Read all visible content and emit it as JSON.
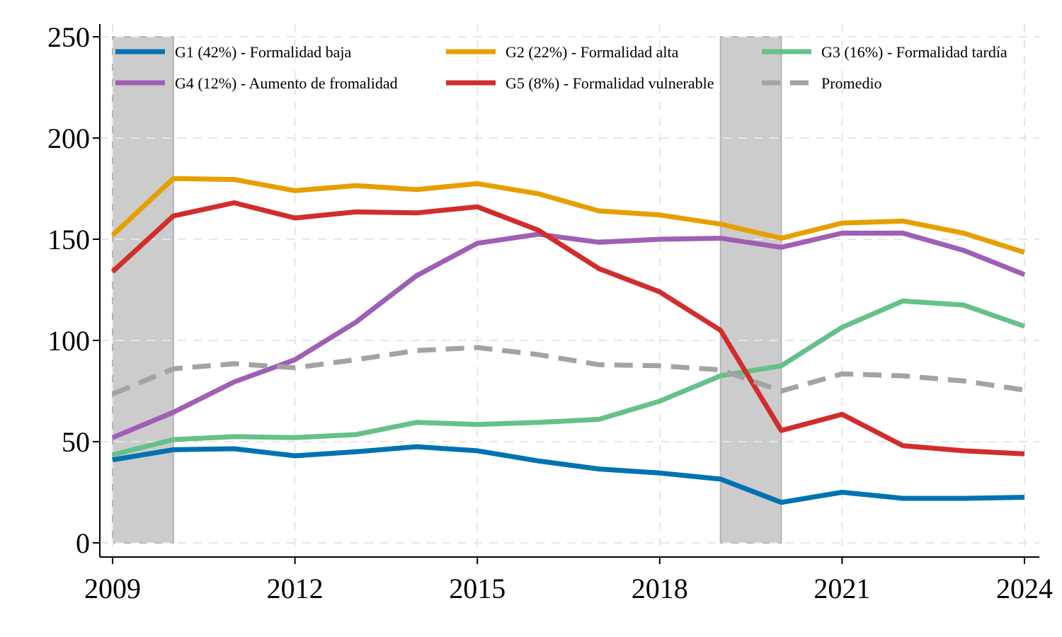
{
  "chart_data": {
    "type": "line",
    "title": "",
    "xlabel": "",
    "ylabel": "",
    "xlim": [
      2009,
      2024
    ],
    "ylim": [
      0,
      250
    ],
    "xticks": [
      2009,
      2012,
      2015,
      2018,
      2021,
      2024
    ],
    "yticks": [
      0,
      50,
      100,
      150,
      200,
      250
    ],
    "grid": true,
    "legend_position": "top",
    "shaded_periods": [
      [
        2009,
        2010
      ],
      [
        2019,
        2020
      ]
    ],
    "shade_color": "#cccccc",
    "x": [
      2009,
      2010,
      2011,
      2012,
      2013,
      2014,
      2015,
      2016,
      2017,
      2018,
      2019,
      2020,
      2021,
      2022,
      2023,
      2024
    ],
    "series": [
      {
        "name": "G1 (42%) - Formalidad baja",
        "color": "#0072b2",
        "dash": false,
        "values": [
          41,
          46,
          46.5,
          43,
          45,
          47.5,
          45.5,
          40.5,
          36.5,
          34.5,
          31.5,
          20,
          25,
          22,
          22,
          22.5
        ]
      },
      {
        "name": "G2 (22%) - Formalidad alta",
        "color": "#e69f00",
        "dash": false,
        "values": [
          152,
          180,
          179.5,
          174,
          176.5,
          174.5,
          177.5,
          172.5,
          164,
          162,
          157.5,
          150.5,
          158,
          159,
          153,
          143.5
        ]
      },
      {
        "name": "G3 (16%) - Formalidad tardía",
        "color": "#66c08a",
        "dash": false,
        "values": [
          43.5,
          51,
          52.5,
          52,
          53.5,
          59.5,
          58.5,
          59.5,
          61,
          70,
          82.5,
          87.5,
          106.5,
          119.5,
          117.5,
          107
        ]
      },
      {
        "name": "G4 (12%) - Aumento de fromalidad",
        "color": "#9e5fb4",
        "dash": false,
        "values": [
          52,
          64.5,
          79.5,
          90.5,
          109,
          132,
          148,
          152.5,
          148.5,
          150,
          150.5,
          146,
          153,
          153,
          144.5,
          132.5
        ]
      },
      {
        "name": "G5 (8%) - Formalidad vulnerable",
        "color": "#d12d2d",
        "dash": false,
        "values": [
          134,
          161.5,
          168,
          160.5,
          163.5,
          163,
          166,
          154.5,
          135.5,
          124,
          105,
          55.5,
          63.5,
          48,
          45.5,
          44
        ]
      },
      {
        "name": "Promedio",
        "color": "#a3a3a3",
        "dash": true,
        "values": [
          73.5,
          86,
          88.5,
          86.5,
          90.5,
          95,
          96.5,
          93,
          88,
          87.5,
          85.5,
          75,
          83.5,
          82.5,
          80,
          75.5
        ]
      }
    ]
  }
}
